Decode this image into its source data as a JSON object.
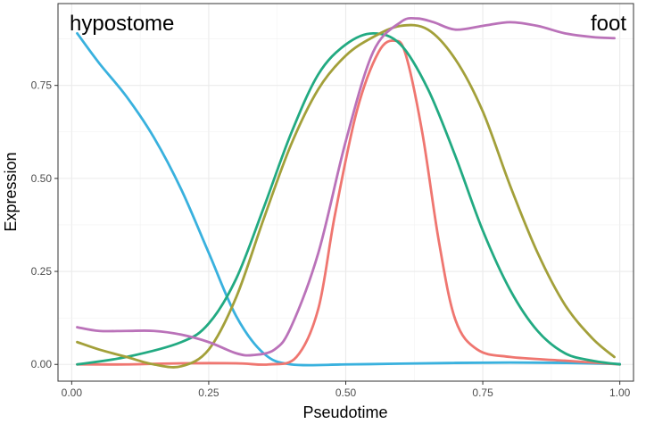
{
  "chart_data": {
    "type": "line",
    "title": "",
    "xlabel": "Pseudotime",
    "ylabel": "Expression",
    "xlim": [
      -0.025,
      1.025
    ],
    "ylim": [
      -0.045,
      0.97
    ],
    "x_ticks": [
      0.0,
      0.25,
      0.5,
      0.75,
      1.0
    ],
    "x_tick_labels": [
      "0.00",
      "0.25",
      "0.50",
      "0.75",
      "1.00"
    ],
    "y_ticks": [
      0.0,
      0.25,
      0.5,
      0.75
    ],
    "y_tick_labels": [
      "0.00",
      "0.25",
      "0.50",
      "0.75"
    ],
    "grid": true,
    "legend": "none",
    "annotations": [
      {
        "name": "hypostome-label",
        "text": "hypostome",
        "anchor": "top-left"
      },
      {
        "name": "foot-label",
        "text": "foot",
        "anchor": "top-right"
      }
    ],
    "series": [
      {
        "name": "blue",
        "color": "#39B1DE",
        "points": [
          [
            0.01,
            0.89
          ],
          [
            0.05,
            0.81
          ],
          [
            0.1,
            0.72
          ],
          [
            0.15,
            0.61
          ],
          [
            0.2,
            0.47
          ],
          [
            0.25,
            0.3
          ],
          [
            0.3,
            0.13
          ],
          [
            0.35,
            0.03
          ],
          [
            0.4,
            0.0
          ],
          [
            0.5,
            0.0
          ],
          [
            0.6,
            0.002
          ],
          [
            0.7,
            0.004
          ],
          [
            0.8,
            0.005
          ],
          [
            0.9,
            0.004
          ],
          [
            1.0,
            0.001
          ]
        ]
      },
      {
        "name": "red",
        "color": "#EF7670",
        "points": [
          [
            0.01,
            0.0
          ],
          [
            0.1,
            0.0
          ],
          [
            0.2,
            0.003
          ],
          [
            0.3,
            0.003
          ],
          [
            0.36,
            0.0
          ],
          [
            0.41,
            0.02
          ],
          [
            0.45,
            0.15
          ],
          [
            0.48,
            0.4
          ],
          [
            0.52,
            0.68
          ],
          [
            0.56,
            0.84
          ],
          [
            0.59,
            0.87
          ],
          [
            0.61,
            0.83
          ],
          [
            0.64,
            0.62
          ],
          [
            0.67,
            0.33
          ],
          [
            0.7,
            0.12
          ],
          [
            0.74,
            0.04
          ],
          [
            0.8,
            0.02
          ],
          [
            0.9,
            0.01
          ],
          [
            1.0,
            0.0
          ]
        ]
      },
      {
        "name": "green",
        "color": "#22AA82",
        "points": [
          [
            0.01,
            0.0
          ],
          [
            0.1,
            0.02
          ],
          [
            0.2,
            0.06
          ],
          [
            0.25,
            0.11
          ],
          [
            0.3,
            0.23
          ],
          [
            0.35,
            0.42
          ],
          [
            0.4,
            0.62
          ],
          [
            0.45,
            0.78
          ],
          [
            0.5,
            0.86
          ],
          [
            0.55,
            0.89
          ],
          [
            0.6,
            0.86
          ],
          [
            0.65,
            0.74
          ],
          [
            0.7,
            0.56
          ],
          [
            0.75,
            0.36
          ],
          [
            0.8,
            0.2
          ],
          [
            0.85,
            0.09
          ],
          [
            0.9,
            0.03
          ],
          [
            0.95,
            0.01
          ],
          [
            1.0,
            0.0
          ]
        ]
      },
      {
        "name": "olive",
        "color": "#A3A03A",
        "points": [
          [
            0.01,
            0.06
          ],
          [
            0.05,
            0.04
          ],
          [
            0.1,
            0.02
          ],
          [
            0.15,
            0.0
          ],
          [
            0.2,
            -0.005
          ],
          [
            0.25,
            0.04
          ],
          [
            0.3,
            0.18
          ],
          [
            0.35,
            0.39
          ],
          [
            0.4,
            0.59
          ],
          [
            0.45,
            0.74
          ],
          [
            0.5,
            0.83
          ],
          [
            0.55,
            0.88
          ],
          [
            0.6,
            0.91
          ],
          [
            0.65,
            0.9
          ],
          [
            0.7,
            0.82
          ],
          [
            0.75,
            0.68
          ],
          [
            0.8,
            0.48
          ],
          [
            0.85,
            0.3
          ],
          [
            0.9,
            0.16
          ],
          [
            0.95,
            0.07
          ],
          [
            0.99,
            0.02
          ]
        ]
      },
      {
        "name": "purple",
        "color": "#BA72B9",
        "points": [
          [
            0.01,
            0.1
          ],
          [
            0.05,
            0.09
          ],
          [
            0.1,
            0.09
          ],
          [
            0.15,
            0.09
          ],
          [
            0.2,
            0.08
          ],
          [
            0.25,
            0.06
          ],
          [
            0.3,
            0.03
          ],
          [
            0.33,
            0.025
          ],
          [
            0.37,
            0.04
          ],
          [
            0.4,
            0.1
          ],
          [
            0.45,
            0.3
          ],
          [
            0.5,
            0.6
          ],
          [
            0.55,
            0.84
          ],
          [
            0.6,
            0.92
          ],
          [
            0.63,
            0.93
          ],
          [
            0.66,
            0.92
          ],
          [
            0.7,
            0.9
          ],
          [
            0.75,
            0.91
          ],
          [
            0.8,
            0.92
          ],
          [
            0.85,
            0.91
          ],
          [
            0.9,
            0.89
          ],
          [
            0.95,
            0.88
          ],
          [
            0.99,
            0.877
          ]
        ]
      }
    ]
  }
}
